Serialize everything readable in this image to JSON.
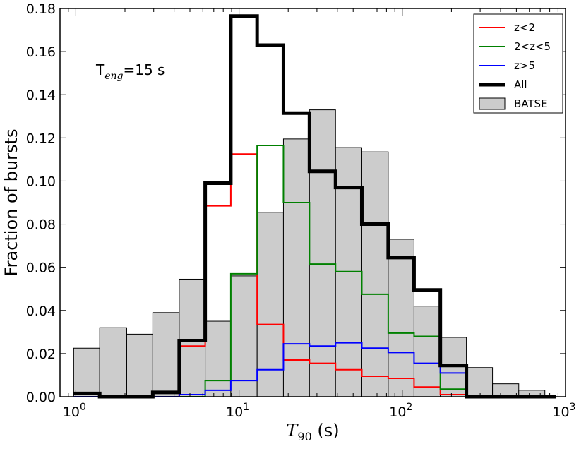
{
  "chart_data": {
    "type": "histogram",
    "xscale": "log",
    "xlim": [
      0.8,
      1000
    ],
    "ylim": [
      0.0,
      0.18
    ],
    "yticks": [
      "0.00",
      "0.02",
      "0.04",
      "0.06",
      "0.08",
      "0.10",
      "0.12",
      "0.14",
      "0.16",
      "0.18"
    ],
    "ytick_values": [
      0,
      0.02,
      0.04,
      0.06,
      0.08,
      0.1,
      0.12,
      0.14,
      0.16,
      0.18
    ],
    "xticks": [
      {
        "value": 1,
        "base": "10",
        "exp": "0"
      },
      {
        "value": 10,
        "base": "10",
        "exp": "1"
      },
      {
        "value": 100,
        "base": "10",
        "exp": "2"
      },
      {
        "value": 1000,
        "base": "10",
        "exp": "3"
      }
    ],
    "ylabel": "Fraction of bursts",
    "xlabel": {
      "symbol": "T",
      "subscript": "90",
      "unit": " (s)"
    },
    "annotation": {
      "base": "T",
      "subscript": "eng",
      "rest": "=15 s"
    },
    "bin_edges": [
      0.97,
      1.4,
      2.05,
      2.96,
      4.3,
      6.2,
      8.9,
      12.9,
      18.7,
      27.0,
      39.0,
      56.5,
      82.0,
      118.0,
      171.0,
      247.0,
      357.0,
      517.0,
      747.0,
      870.0
    ],
    "batse": {
      "name": "BATSE",
      "values": [
        0.0225,
        0.032,
        0.029,
        0.039,
        0.0545,
        0.035,
        0.056,
        0.0855,
        0.1195,
        0.133,
        0.1155,
        0.1135,
        0.073,
        0.042,
        0.0275,
        0.0135,
        0.006,
        0.003,
        0.0
      ],
      "fill": "#cccccc",
      "edge": "#000000"
    },
    "series": [
      {
        "name": "z<2",
        "color": "#ff0000",
        "width": 2,
        "values": [
          0.0,
          0.0,
          0.0,
          0.0,
          0.0235,
          0.0885,
          0.1125,
          0.0335,
          0.017,
          0.0155,
          0.0125,
          0.0095,
          0.0085,
          0.0045,
          0.001,
          0.0,
          0.0,
          0.0,
          0.0
        ]
      },
      {
        "name": "2<z<5",
        "color": "#008000",
        "width": 2,
        "values": [
          0.0,
          0.0,
          0.0,
          0.0,
          0.0,
          0.0075,
          0.057,
          0.1165,
          0.09,
          0.0615,
          0.058,
          0.0475,
          0.0295,
          0.028,
          0.0035,
          0.0,
          0.0,
          0.0,
          0.0
        ]
      },
      {
        "name": "z>5",
        "color": "#0000ff",
        "width": 2,
        "values": [
          0.0,
          0.0,
          0.0,
          0.0,
          0.001,
          0.003,
          0.0075,
          0.0125,
          0.0245,
          0.0235,
          0.025,
          0.0225,
          0.0205,
          0.0155,
          0.011,
          0.0,
          0.0,
          0.0,
          0.0
        ]
      },
      {
        "name": "All",
        "color": "#000000",
        "width": 5,
        "values": [
          0.0015,
          0.0,
          0.0,
          0.002,
          0.026,
          0.099,
          0.1765,
          0.163,
          0.1315,
          0.1045,
          0.097,
          0.08,
          0.0645,
          0.0495,
          0.0145,
          0.0,
          0.0,
          0.0,
          0.0
        ]
      }
    ],
    "legend": {
      "position": "top-right",
      "entries": [
        {
          "label": "z<2",
          "color": "#ff0000",
          "kind": "line"
        },
        {
          "label": "2<z<5",
          "color": "#008000",
          "kind": "line"
        },
        {
          "label": "z>5",
          "color": "#0000ff",
          "kind": "line"
        },
        {
          "label": "All",
          "color": "#000000",
          "kind": "thick-line"
        },
        {
          "label": "BATSE",
          "color": "#cccccc",
          "kind": "patch"
        }
      ]
    }
  }
}
